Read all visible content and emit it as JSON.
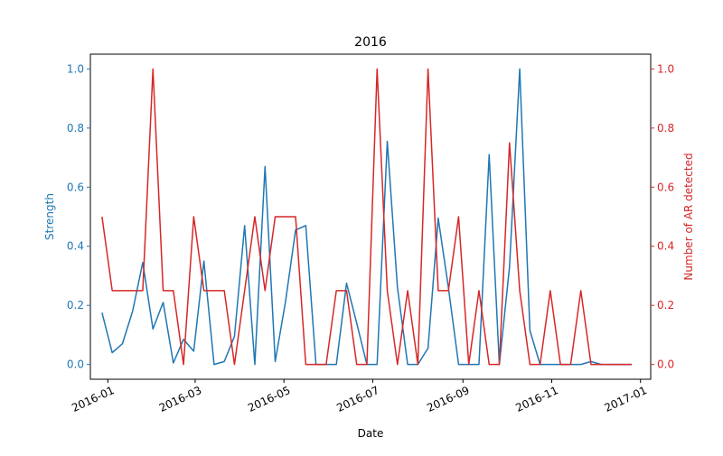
{
  "chart_data": {
    "type": "line",
    "title": "2016",
    "xlabel": "Date",
    "ylabel_left": "Strength",
    "ylabel_right": "Number of AR detected",
    "x_tick_labels": [
      "2016-01",
      "2016-03",
      "2016-05",
      "2016-07",
      "2016-09",
      "2016-11",
      "2017-01"
    ],
    "x_tick_dates": [
      "2016-01-01",
      "2016-03-01",
      "2016-05-01",
      "2016-07-01",
      "2016-09-01",
      "2016-11-01",
      "2017-01-01"
    ],
    "xlim": [
      "2015-12-20",
      "2017-01-08"
    ],
    "y_ticks_left": [
      0.0,
      0.2,
      0.4,
      0.6,
      0.8,
      1.0
    ],
    "y_tick_labels_left": [
      "0.0",
      "0.2",
      "0.4",
      "0.6",
      "0.8",
      "1.0"
    ],
    "y_ticks_right": [
      0.0,
      0.2,
      0.4,
      0.6,
      0.8,
      1.0
    ],
    "y_tick_labels_right": [
      "0.0",
      "0.2",
      "0.4",
      "0.6",
      "0.8",
      "1.0"
    ],
    "ylim_left": [
      -0.05,
      1.05
    ],
    "ylim_right": [
      -0.05,
      1.05
    ],
    "grid": false,
    "legend": "none",
    "colors": {
      "left": "#1f77b4",
      "right": "#d62728"
    },
    "dates": [
      "2015-12-28",
      "2016-01-04",
      "2016-01-11",
      "2016-01-18",
      "2016-01-25",
      "2016-02-01",
      "2016-02-08",
      "2016-02-15",
      "2016-02-22",
      "2016-02-29",
      "2016-03-07",
      "2016-03-14",
      "2016-03-21",
      "2016-03-28",
      "2016-04-04",
      "2016-04-11",
      "2016-04-18",
      "2016-04-25",
      "2016-05-02",
      "2016-05-09",
      "2016-05-16",
      "2016-05-23",
      "2016-05-30",
      "2016-06-06",
      "2016-06-13",
      "2016-06-20",
      "2016-06-27",
      "2016-07-04",
      "2016-07-11",
      "2016-07-18",
      "2016-07-25",
      "2016-08-01",
      "2016-08-08",
      "2016-08-15",
      "2016-08-22",
      "2016-08-29",
      "2016-09-05",
      "2016-09-12",
      "2016-09-19",
      "2016-09-26",
      "2016-10-03",
      "2016-10-10",
      "2016-10-17",
      "2016-10-24",
      "2016-10-31",
      "2016-11-07",
      "2016-11-14",
      "2016-11-21",
      "2016-11-28",
      "2016-12-05",
      "2016-12-12",
      "2016-12-19",
      "2016-12-26"
    ],
    "series": [
      {
        "axis": "left",
        "values": [
          0.175,
          0.04,
          0.07,
          0.18,
          0.345,
          0.12,
          0.21,
          0.005,
          0.085,
          0.045,
          0.35,
          0.0,
          0.01,
          0.095,
          0.47,
          0.0,
          0.67,
          0.01,
          0.21,
          0.455,
          0.47,
          0.0,
          0.0,
          0.0,
          0.275,
          0.14,
          0.0,
          0.0,
          0.755,
          0.26,
          0.0,
          0.0,
          0.055,
          0.495,
          0.26,
          0.0,
          0.0,
          0.0,
          0.71,
          0.0,
          0.33,
          1.0,
          0.115,
          0.0,
          0.0,
          0.0,
          0.0,
          0.0,
          0.01,
          0.0,
          0.0,
          0.0,
          0.0
        ]
      },
      {
        "axis": "right",
        "values": [
          0.5,
          0.25,
          0.25,
          0.25,
          0.25,
          1.0,
          0.25,
          0.25,
          0.0,
          0.5,
          0.25,
          0.25,
          0.25,
          0.0,
          0.25,
          0.5,
          0.25,
          0.5,
          0.5,
          0.5,
          0.0,
          0.0,
          0.0,
          0.25,
          0.25,
          0.0,
          0.0,
          1.0,
          0.25,
          0.0,
          0.25,
          0.0,
          1.0,
          0.25,
          0.25,
          0.5,
          0.0,
          0.25,
          0.0,
          0.0,
          0.75,
          0.25,
          0.0,
          0.0,
          0.25,
          0.0,
          0.0,
          0.25,
          0.0,
          0.0,
          0.0,
          0.0,
          0.0
        ]
      }
    ]
  }
}
